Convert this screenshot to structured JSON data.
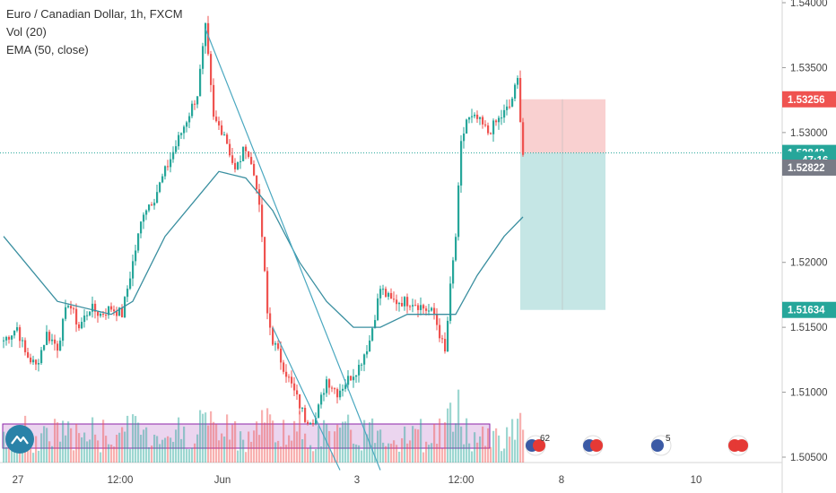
{
  "legend": {
    "symbol": "Euro / Canadian Dollar, 1h, FXCM",
    "vol": "Vol (20)",
    "ema": "EMA (50, close)"
  },
  "price_axis": {
    "ticks": [
      "1.54000",
      "1.53500",
      "1.53000",
      "1.52000",
      "1.51500",
      "1.51000",
      "1.50500"
    ],
    "tags": [
      {
        "label": "1.53256",
        "color": "#ef5350",
        "value": 1.53256
      },
      {
        "label": "1.52843",
        "color": "#26a69a",
        "value": 1.52843
      },
      {
        "label": "47:16",
        "color": "#26a69a",
        "value": 1.5279
      },
      {
        "label": "1.52822",
        "color": "#787b86",
        "value": 1.5273
      },
      {
        "label": "1.51634",
        "color": "#26a69a",
        "value": 1.51634
      }
    ]
  },
  "time_axis": {
    "ticks": [
      "27",
      "12:00",
      "Jun",
      "3",
      "12:00",
      "8",
      "10"
    ]
  },
  "event_badges": [
    {
      "icon": "eu-ca-flags-icon",
      "count": "62"
    },
    {
      "icon": "eu-ca-flags-icon",
      "count": ""
    },
    {
      "icon": "eu-flag-icon",
      "count": "5"
    },
    {
      "icon": "ca-flags-icon",
      "count": ""
    }
  ],
  "colors": {
    "up": "#26a69a",
    "down": "#ef5350",
    "ema": "#3a8fa0",
    "trendline": "#4aa8c0",
    "stop_zone": "#f7c4c4",
    "target_zone": "#b6e0de",
    "volume_zone": "#e1bee7"
  },
  "chart_data": {
    "type": "candlestick",
    "title": "Euro / Canadian Dollar, 1h, FXCM",
    "ylim": [
      1.505,
      1.54
    ],
    "current_price": 1.52843,
    "position": {
      "entry": 1.52843,
      "stop": 1.53256,
      "target": 1.51634
    },
    "ema_label": "EMA (50, close)",
    "volume_label": "Vol (20)",
    "anchors": [
      [
        0,
        1.514
      ],
      [
        5,
        1.515
      ],
      [
        8,
        1.513
      ],
      [
        12,
        1.512
      ],
      [
        16,
        1.5145
      ],
      [
        20,
        1.5135
      ],
      [
        24,
        1.517
      ],
      [
        28,
        1.515
      ],
      [
        32,
        1.5165
      ],
      [
        36,
        1.516
      ],
      [
        40,
        1.5165
      ],
      [
        44,
        1.516
      ],
      [
        48,
        1.52
      ],
      [
        52,
        1.524
      ],
      [
        56,
        1.525
      ],
      [
        60,
        1.527
      ],
      [
        64,
        1.529
      ],
      [
        68,
        1.531
      ],
      [
        72,
        1.533
      ],
      [
        75,
        1.538
      ],
      [
        78,
        1.531
      ],
      [
        82,
        1.53
      ],
      [
        86,
        1.527
      ],
      [
        90,
        1.529
      ],
      [
        94,
        1.526
      ],
      [
        96,
        1.522
      ],
      [
        98,
        1.516
      ],
      [
        100,
        1.514
      ],
      [
        104,
        1.512
      ],
      [
        108,
        1.51
      ],
      [
        112,
        1.508
      ],
      [
        116,
        1.508
      ],
      [
        120,
        1.511
      ],
      [
        124,
        1.51
      ],
      [
        128,
        1.511
      ],
      [
        132,
        1.512
      ],
      [
        136,
        1.514
      ],
      [
        140,
        1.518
      ],
      [
        144,
        1.517
      ],
      [
        148,
        1.517
      ],
      [
        152,
        1.517
      ],
      [
        156,
        1.5165
      ],
      [
        160,
        1.516
      ],
      [
        164,
        1.513
      ],
      [
        166,
        1.518
      ],
      [
        168,
        1.522
      ],
      [
        170,
        1.529
      ],
      [
        172,
        1.531
      ],
      [
        176,
        1.531
      ],
      [
        180,
        1.53
      ],
      [
        184,
        1.531
      ],
      [
        188,
        1.532
      ],
      [
        191,
        1.534
      ],
      [
        193,
        1.5284
      ]
    ],
    "ema_points": [
      [
        0,
        1.522
      ],
      [
        20,
        1.517
      ],
      [
        40,
        1.516
      ],
      [
        48,
        1.517
      ],
      [
        60,
        1.522
      ],
      [
        72,
        1.525
      ],
      [
        80,
        1.527
      ],
      [
        90,
        1.5265
      ],
      [
        100,
        1.524
      ],
      [
        110,
        1.52
      ],
      [
        120,
        1.517
      ],
      [
        130,
        1.515
      ],
      [
        140,
        1.515
      ],
      [
        150,
        1.516
      ],
      [
        160,
        1.516
      ],
      [
        168,
        1.516
      ],
      [
        176,
        1.519
      ],
      [
        186,
        1.522
      ],
      [
        193,
        1.5235
      ]
    ],
    "trendlines": [
      {
        "from": [
          75,
          1.538
        ],
        "to": [
          140,
          1.504
        ]
      },
      {
        "from": [
          100,
          1.515
        ],
        "to": [
          125,
          1.504
        ]
      }
    ]
  }
}
